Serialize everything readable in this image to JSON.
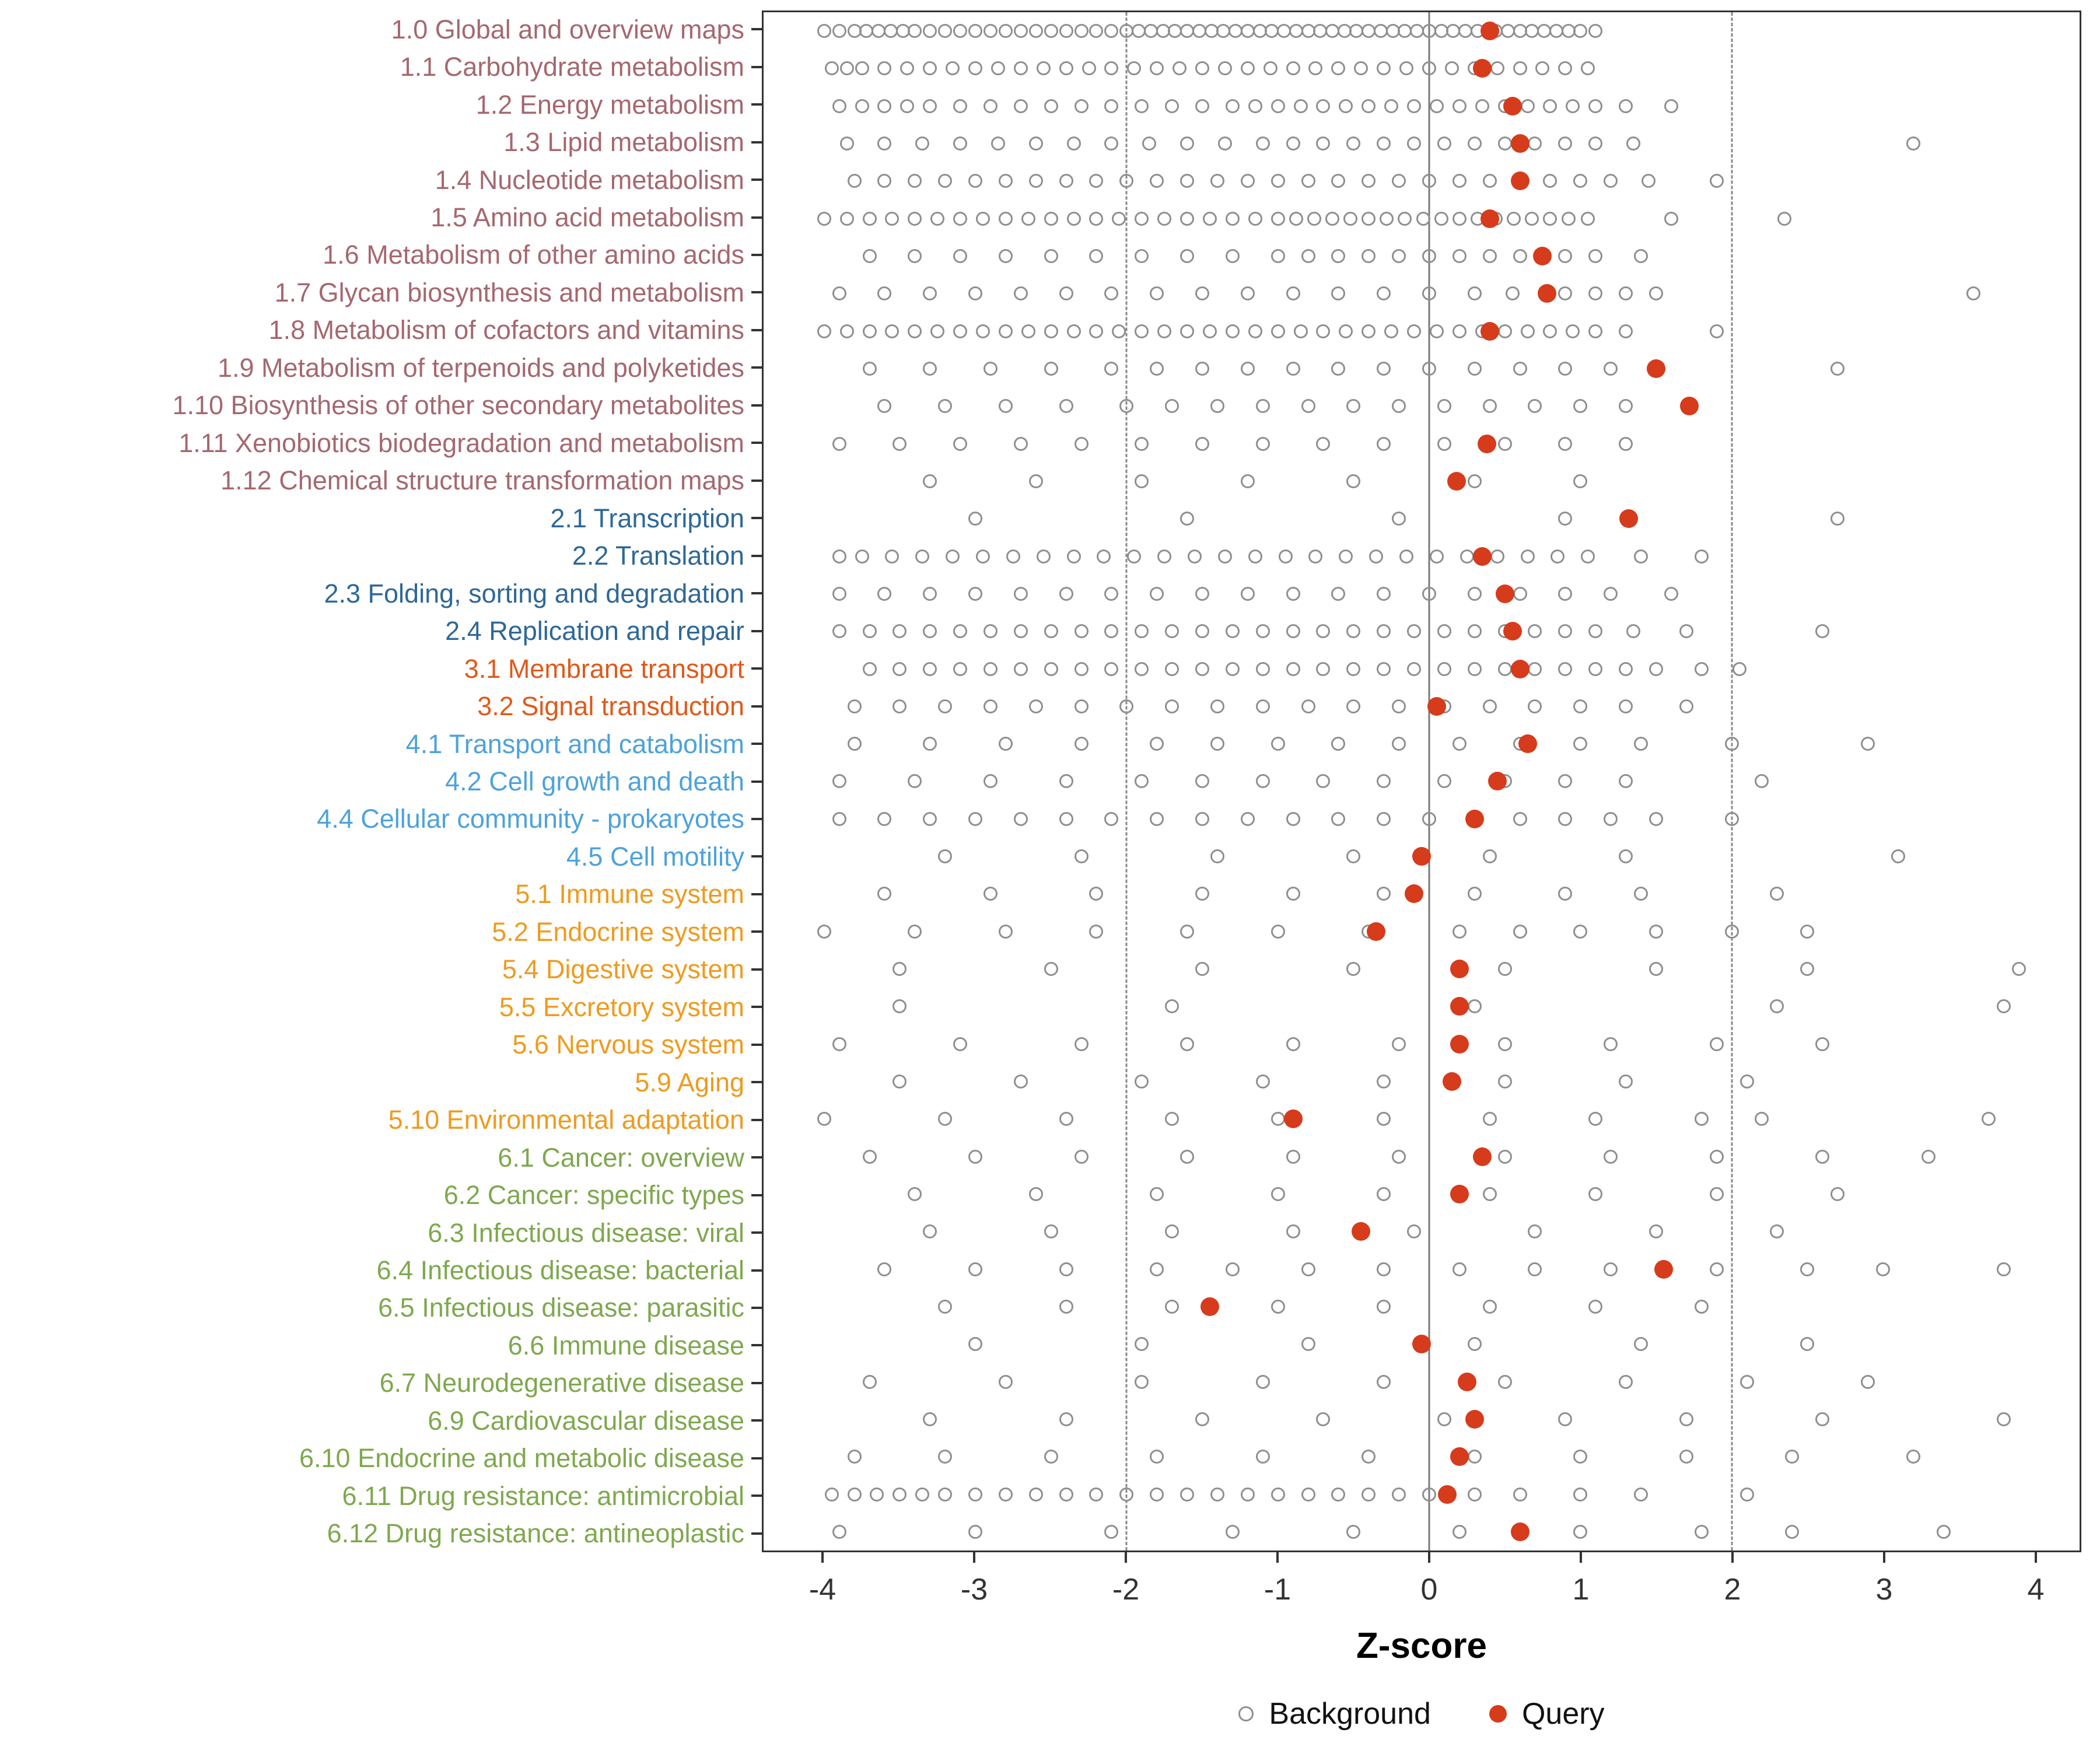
{
  "figure": {
    "background": "#ffffff"
  },
  "axis": {
    "label": "Z-score",
    "ticks": [
      -4,
      -3,
      -2,
      -1,
      0,
      1,
      2,
      3,
      4
    ],
    "domain": [
      -4.4,
      4.3
    ],
    "zero_line": 0,
    "dashed_lines": [
      -2,
      2
    ]
  },
  "legend": {
    "items": [
      {
        "label": "Background",
        "type": "open"
      },
      {
        "label": "Query",
        "type": "filled"
      }
    ]
  },
  "colors": {
    "query": "#d63b1c",
    "background_stroke": "#8f8f8f",
    "panel_border": "#333333",
    "zero_line": "#7a7a7a",
    "dashed_line": "#8a8a8a",
    "groups": {
      "1": "#a5686f",
      "2": "#2e6898",
      "3": "#de5a1c",
      "4": "#4ea2db",
      "5": "#ee9b1f",
      "6": "#7fa84e"
    }
  },
  "chart_data": {
    "type": "scatter",
    "title": "",
    "xlabel": "Z-score",
    "xlim": [
      -4.4,
      4.3
    ],
    "series_names": [
      "Background",
      "Query"
    ],
    "rows": [
      {
        "label": "1.0 Global and overview maps",
        "group": "1",
        "query": 0.4,
        "background": [
          -4.0,
          -3.9,
          -3.8,
          -3.72,
          -3.64,
          -3.56,
          -3.48,
          -3.4,
          -3.3,
          -3.2,
          -3.1,
          -3.0,
          -2.9,
          -2.8,
          -2.7,
          -2.6,
          -2.5,
          -2.4,
          -2.3,
          -2.2,
          -2.1,
          -2.0,
          -1.92,
          -1.84,
          -1.76,
          -1.68,
          -1.6,
          -1.52,
          -1.44,
          -1.36,
          -1.28,
          -1.2,
          -1.12,
          -1.04,
          -0.96,
          -0.88,
          -0.8,
          -0.72,
          -0.64,
          -0.56,
          -0.48,
          -0.4,
          -0.32,
          -0.24,
          -0.16,
          -0.08,
          0.0,
          0.08,
          0.16,
          0.24,
          0.32,
          0.44,
          0.52,
          0.6,
          0.68,
          0.76,
          0.84,
          0.92,
          1.0,
          1.1
        ]
      },
      {
        "label": "1.1 Carbohydrate metabolism",
        "group": "1",
        "query": 0.35,
        "background": [
          -3.95,
          -3.85,
          -3.75,
          -3.6,
          -3.45,
          -3.3,
          -3.15,
          -3.0,
          -2.85,
          -2.7,
          -2.55,
          -2.4,
          -2.25,
          -2.1,
          -1.95,
          -1.8,
          -1.65,
          -1.5,
          -1.35,
          -1.2,
          -1.05,
          -0.9,
          -0.75,
          -0.6,
          -0.45,
          -0.3,
          -0.15,
          0.0,
          0.15,
          0.3,
          0.45,
          0.6,
          0.75,
          0.9,
          1.05
        ]
      },
      {
        "label": "1.2 Energy metabolism",
        "group": "1",
        "query": 0.55,
        "background": [
          -3.9,
          -3.75,
          -3.6,
          -3.45,
          -3.3,
          -3.1,
          -2.9,
          -2.7,
          -2.5,
          -2.3,
          -2.1,
          -1.9,
          -1.7,
          -1.5,
          -1.3,
          -1.15,
          -1.0,
          -0.85,
          -0.7,
          -0.55,
          -0.4,
          -0.25,
          -0.1,
          0.05,
          0.2,
          0.35,
          0.5,
          0.65,
          0.8,
          0.95,
          1.1,
          1.3,
          1.6
        ]
      },
      {
        "label": "1.3 Lipid metabolism",
        "group": "1",
        "query": 0.6,
        "background": [
          -3.85,
          -3.6,
          -3.35,
          -3.1,
          -2.85,
          -2.6,
          -2.35,
          -2.1,
          -1.85,
          -1.6,
          -1.35,
          -1.1,
          -0.9,
          -0.7,
          -0.5,
          -0.3,
          -0.1,
          0.1,
          0.3,
          0.5,
          0.7,
          0.9,
          1.1,
          1.35,
          3.2
        ]
      },
      {
        "label": "1.4 Nucleotide metabolism",
        "group": "1",
        "query": 0.6,
        "background": [
          -3.8,
          -3.6,
          -3.4,
          -3.2,
          -3.0,
          -2.8,
          -2.6,
          -2.4,
          -2.2,
          -2.0,
          -1.8,
          -1.6,
          -1.4,
          -1.2,
          -1.0,
          -0.8,
          -0.6,
          -0.4,
          -0.2,
          0.0,
          0.2,
          0.4,
          0.6,
          0.8,
          1.0,
          1.2,
          1.45,
          1.9
        ]
      },
      {
        "label": "1.5 Amino acid metabolism",
        "group": "1",
        "query": 0.4,
        "background": [
          -4.0,
          -3.85,
          -3.7,
          -3.55,
          -3.4,
          -3.25,
          -3.1,
          -2.95,
          -2.8,
          -2.65,
          -2.5,
          -2.35,
          -2.2,
          -2.05,
          -1.9,
          -1.75,
          -1.6,
          -1.45,
          -1.3,
          -1.15,
          -1.0,
          -0.88,
          -0.76,
          -0.64,
          -0.52,
          -0.4,
          -0.28,
          -0.16,
          -0.04,
          0.08,
          0.2,
          0.32,
          0.44,
          0.56,
          0.68,
          0.8,
          0.92,
          1.05,
          1.6,
          2.35
        ]
      },
      {
        "label": "1.6 Metabolism of other amino acids",
        "group": "1",
        "query": 0.75,
        "background": [
          -3.7,
          -3.4,
          -3.1,
          -2.8,
          -2.5,
          -2.2,
          -1.9,
          -1.6,
          -1.3,
          -1.0,
          -0.8,
          -0.6,
          -0.4,
          -0.2,
          0.0,
          0.2,
          0.4,
          0.6,
          0.9,
          1.1,
          1.4
        ]
      },
      {
        "label": "1.7 Glycan biosynthesis and metabolism",
        "group": "1",
        "query": 0.78,
        "background": [
          -3.9,
          -3.6,
          -3.3,
          -3.0,
          -2.7,
          -2.4,
          -2.1,
          -1.8,
          -1.5,
          -1.2,
          -0.9,
          -0.6,
          -0.3,
          0.0,
          0.3,
          0.55,
          0.9,
          1.1,
          1.3,
          1.5,
          3.6
        ]
      },
      {
        "label": "1.8 Metabolism of cofactors and vitamins",
        "group": "1",
        "query": 0.4,
        "background": [
          -4.0,
          -3.85,
          -3.7,
          -3.55,
          -3.4,
          -3.25,
          -3.1,
          -2.95,
          -2.8,
          -2.65,
          -2.5,
          -2.35,
          -2.2,
          -2.05,
          -1.9,
          -1.75,
          -1.6,
          -1.45,
          -1.3,
          -1.15,
          -1.0,
          -0.85,
          -0.7,
          -0.55,
          -0.4,
          -0.25,
          -0.1,
          0.05,
          0.2,
          0.35,
          0.5,
          0.65,
          0.8,
          0.95,
          1.1,
          1.3,
          1.9
        ]
      },
      {
        "label": "1.9 Metabolism of terpenoids and polyketides",
        "group": "1",
        "query": 1.5,
        "background": [
          -3.7,
          -3.3,
          -2.9,
          -2.5,
          -2.1,
          -1.8,
          -1.5,
          -1.2,
          -0.9,
          -0.6,
          -0.3,
          0.0,
          0.3,
          0.6,
          0.9,
          1.2,
          2.7
        ]
      },
      {
        "label": "1.10 Biosynthesis of other secondary metabolites",
        "group": "1",
        "query": 1.72,
        "background": [
          -3.6,
          -3.2,
          -2.8,
          -2.4,
          -2.0,
          -1.7,
          -1.4,
          -1.1,
          -0.8,
          -0.5,
          -0.2,
          0.1,
          0.4,
          0.7,
          1.0,
          1.3
        ]
      },
      {
        "label": "1.11 Xenobiotics biodegradation and metabolism",
        "group": "1",
        "query": 0.38,
        "background": [
          -3.9,
          -3.5,
          -3.1,
          -2.7,
          -2.3,
          -1.9,
          -1.5,
          -1.1,
          -0.7,
          -0.3,
          0.1,
          0.5,
          0.9,
          1.3
        ]
      },
      {
        "label": "1.12 Chemical structure transformation maps",
        "group": "1",
        "query": 0.18,
        "background": [
          -3.3,
          -2.6,
          -1.9,
          -1.2,
          -0.5,
          0.3,
          1.0
        ]
      },
      {
        "label": "2.1 Transcription",
        "group": "2",
        "query": 1.32,
        "background": [
          -3.0,
          -1.6,
          -0.2,
          0.9,
          2.7
        ]
      },
      {
        "label": "2.2 Translation",
        "group": "2",
        "query": 0.35,
        "background": [
          -3.9,
          -3.75,
          -3.55,
          -3.35,
          -3.15,
          -2.95,
          -2.75,
          -2.55,
          -2.35,
          -2.15,
          -1.95,
          -1.75,
          -1.55,
          -1.35,
          -1.15,
          -0.95,
          -0.75,
          -0.55,
          -0.35,
          -0.15,
          0.05,
          0.25,
          0.45,
          0.65,
          0.85,
          1.05,
          1.4,
          1.8
        ]
      },
      {
        "label": "2.3 Folding, sorting and degradation",
        "group": "2",
        "query": 0.5,
        "background": [
          -3.9,
          -3.6,
          -3.3,
          -3.0,
          -2.7,
          -2.4,
          -2.1,
          -1.8,
          -1.5,
          -1.2,
          -0.9,
          -0.6,
          -0.3,
          0.0,
          0.3,
          0.6,
          0.9,
          1.2,
          1.6
        ]
      },
      {
        "label": "2.4 Replication and repair",
        "group": "2",
        "query": 0.55,
        "background": [
          -3.9,
          -3.7,
          -3.5,
          -3.3,
          -3.1,
          -2.9,
          -2.7,
          -2.5,
          -2.3,
          -2.1,
          -1.9,
          -1.7,
          -1.5,
          -1.3,
          -1.1,
          -0.9,
          -0.7,
          -0.5,
          -0.3,
          -0.1,
          0.1,
          0.3,
          0.5,
          0.7,
          0.9,
          1.1,
          1.35,
          1.7,
          2.6
        ]
      },
      {
        "label": "3.1 Membrane transport",
        "group": "3",
        "query": 0.6,
        "background": [
          -3.7,
          -3.5,
          -3.3,
          -3.1,
          -2.9,
          -2.7,
          -2.5,
          -2.3,
          -2.1,
          -1.9,
          -1.7,
          -1.5,
          -1.3,
          -1.1,
          -0.9,
          -0.7,
          -0.5,
          -0.3,
          -0.1,
          0.1,
          0.3,
          0.5,
          0.7,
          0.9,
          1.1,
          1.3,
          1.5,
          1.8,
          2.05
        ]
      },
      {
        "label": "3.2 Signal transduction",
        "group": "3",
        "query": 0.05,
        "background": [
          -3.8,
          -3.5,
          -3.2,
          -2.9,
          -2.6,
          -2.3,
          -2.0,
          -1.7,
          -1.4,
          -1.1,
          -0.8,
          -0.5,
          -0.2,
          0.1,
          0.4,
          0.7,
          1.0,
          1.3,
          1.7
        ]
      },
      {
        "label": "4.1 Transport and catabolism",
        "group": "4",
        "query": 0.65,
        "background": [
          -3.8,
          -3.3,
          -2.8,
          -2.3,
          -1.8,
          -1.4,
          -1.0,
          -0.6,
          -0.2,
          0.2,
          0.6,
          1.0,
          1.4,
          2.0,
          2.9
        ]
      },
      {
        "label": "4.2 Cell growth and death",
        "group": "4",
        "query": 0.45,
        "background": [
          -3.9,
          -3.4,
          -2.9,
          -2.4,
          -1.9,
          -1.5,
          -1.1,
          -0.7,
          -0.3,
          0.1,
          0.5,
          0.9,
          1.3,
          2.2
        ]
      },
      {
        "label": "4.4 Cellular community - prokaryotes",
        "group": "4",
        "query": 0.3,
        "background": [
          -3.9,
          -3.6,
          -3.3,
          -3.0,
          -2.7,
          -2.4,
          -2.1,
          -1.8,
          -1.5,
          -1.2,
          -0.9,
          -0.6,
          -0.3,
          0.0,
          0.3,
          0.6,
          0.9,
          1.2,
          1.5,
          2.0
        ]
      },
      {
        "label": "4.5 Cell motility",
        "group": "4",
        "query": -0.05,
        "background": [
          -3.2,
          -2.3,
          -1.4,
          -0.5,
          0.4,
          1.3,
          3.1
        ]
      },
      {
        "label": "5.1 Immune system",
        "group": "5",
        "query": -0.1,
        "background": [
          -3.6,
          -2.9,
          -2.2,
          -1.5,
          -0.9,
          -0.3,
          0.3,
          0.9,
          1.4,
          2.3
        ]
      },
      {
        "label": "5.2 Endocrine system",
        "group": "5",
        "query": -0.35,
        "background": [
          -4.0,
          -3.4,
          -2.8,
          -2.2,
          -1.6,
          -1.0,
          -0.4,
          0.2,
          0.6,
          1.0,
          1.5,
          2.0,
          2.5
        ]
      },
      {
        "label": "5.4 Digestive system",
        "group": "5",
        "query": 0.2,
        "background": [
          -3.5,
          -2.5,
          -1.5,
          -0.5,
          0.5,
          1.5,
          2.5,
          3.9
        ]
      },
      {
        "label": "5.5 Excretory system",
        "group": "5",
        "query": 0.2,
        "background": [
          -3.5,
          -1.7,
          0.3,
          2.3,
          3.8
        ]
      },
      {
        "label": "5.6 Nervous system",
        "group": "5",
        "query": 0.2,
        "background": [
          -3.9,
          -3.1,
          -2.3,
          -1.6,
          -0.9,
          -0.2,
          0.5,
          1.2,
          1.9,
          2.6
        ]
      },
      {
        "label": "5.9 Aging",
        "group": "5",
        "query": 0.15,
        "background": [
          -3.5,
          -2.7,
          -1.9,
          -1.1,
          -0.3,
          0.5,
          1.3,
          2.1
        ]
      },
      {
        "label": "5.10 Environmental adaptation",
        "group": "5",
        "query": -0.9,
        "background": [
          -4.0,
          -3.2,
          -2.4,
          -1.7,
          -1.0,
          -0.3,
          0.4,
          1.1,
          1.8,
          2.2,
          3.7
        ]
      },
      {
        "label": "6.1 Cancer: overview",
        "group": "6",
        "query": 0.35,
        "background": [
          -3.7,
          -3.0,
          -2.3,
          -1.6,
          -0.9,
          -0.2,
          0.5,
          1.2,
          1.9,
          2.6,
          3.3
        ]
      },
      {
        "label": "6.2 Cancer: specific types",
        "group": "6",
        "query": 0.2,
        "background": [
          -3.4,
          -2.6,
          -1.8,
          -1.0,
          -0.3,
          0.4,
          1.1,
          1.9,
          2.7
        ]
      },
      {
        "label": "6.3 Infectious disease: viral",
        "group": "6",
        "query": -0.45,
        "background": [
          -3.3,
          -2.5,
          -1.7,
          -0.9,
          -0.1,
          0.7,
          1.5,
          2.3
        ]
      },
      {
        "label": "6.4 Infectious disease: bacterial",
        "group": "6",
        "query": 1.55,
        "background": [
          -3.6,
          -3.0,
          -2.4,
          -1.8,
          -1.3,
          -0.8,
          -0.3,
          0.2,
          0.7,
          1.2,
          1.9,
          2.5,
          3.0,
          3.8
        ]
      },
      {
        "label": "6.5 Infectious disease: parasitic",
        "group": "6",
        "query": -1.45,
        "background": [
          -3.2,
          -2.4,
          -1.7,
          -1.0,
          -0.3,
          0.4,
          1.1,
          1.8
        ]
      },
      {
        "label": "6.6 Immune disease",
        "group": "6",
        "query": -0.05,
        "background": [
          -3.0,
          -1.9,
          -0.8,
          0.3,
          1.4,
          2.5
        ]
      },
      {
        "label": "6.7 Neurodegenerative disease",
        "group": "6",
        "query": 0.25,
        "background": [
          -3.7,
          -2.8,
          -1.9,
          -1.1,
          -0.3,
          0.5,
          1.3,
          2.1,
          2.9
        ]
      },
      {
        "label": "6.9 Cardiovascular disease",
        "group": "6",
        "query": 0.3,
        "background": [
          -3.3,
          -2.4,
          -1.5,
          -0.7,
          0.1,
          0.9,
          1.7,
          2.6,
          3.8
        ]
      },
      {
        "label": "6.10 Endocrine and metabolic disease",
        "group": "6",
        "query": 0.2,
        "background": [
          -3.8,
          -3.2,
          -2.5,
          -1.8,
          -1.1,
          -0.4,
          0.3,
          1.0,
          1.7,
          2.4,
          3.2
        ]
      },
      {
        "label": "6.11 Drug resistance: antimicrobial",
        "group": "6",
        "query": 0.12,
        "background": [
          -3.95,
          -3.8,
          -3.65,
          -3.5,
          -3.35,
          -3.2,
          -3.0,
          -2.8,
          -2.6,
          -2.4,
          -2.2,
          -2.0,
          -1.8,
          -1.6,
          -1.4,
          -1.2,
          -1.0,
          -0.8,
          -0.6,
          -0.4,
          -0.2,
          0.0,
          0.3,
          0.6,
          1.0,
          1.4,
          2.1
        ]
      },
      {
        "label": "6.12 Drug resistance: antineoplastic",
        "group": "6",
        "query": 0.6,
        "background": [
          -3.9,
          -3.0,
          -2.1,
          -1.3,
          -0.5,
          0.2,
          1.0,
          1.8,
          2.4,
          3.4
        ]
      }
    ]
  }
}
